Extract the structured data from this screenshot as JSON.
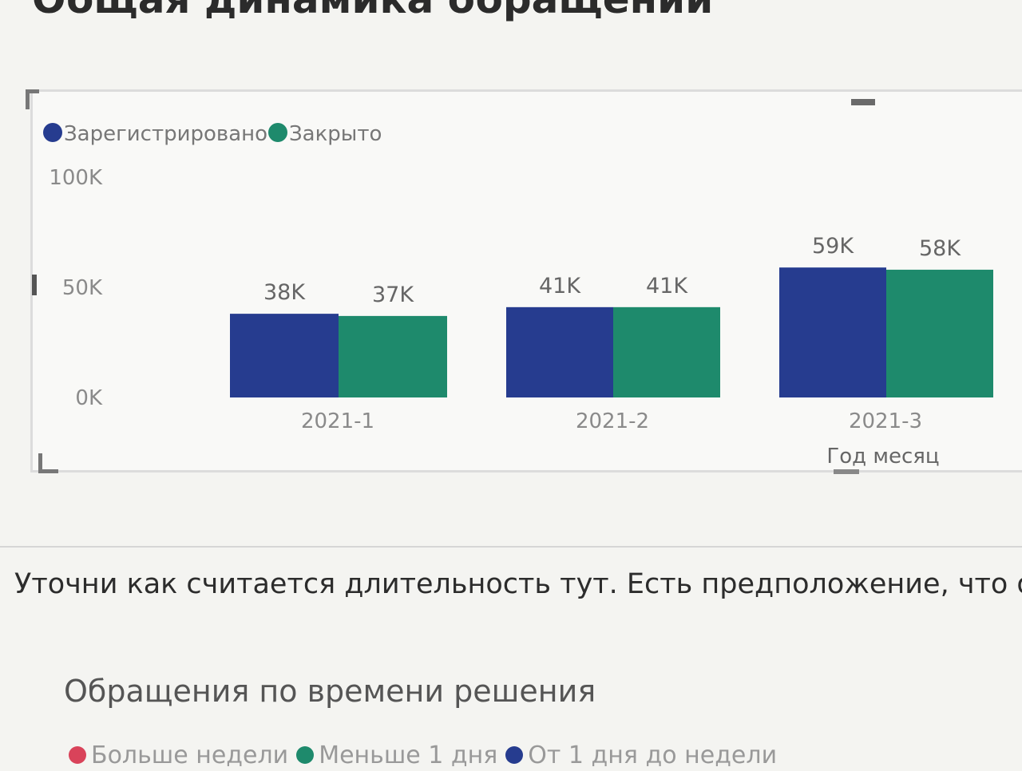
{
  "page": {
    "title": "Общая динамика обращений"
  },
  "chart_data": {
    "type": "bar",
    "categories": [
      "2021-1",
      "2021-2",
      "2021-3"
    ],
    "series": [
      {
        "name": "Зарегистрировано",
        "values": [
          38,
          41,
          59
        ],
        "labels": [
          "38K",
          "41K",
          "59K"
        ],
        "color": "#263c8f"
      },
      {
        "name": "Закрыто",
        "values": [
          37,
          41,
          58
        ],
        "labels": [
          "37K",
          "41K",
          "58K"
        ],
        "color": "#1e8a6c"
      }
    ],
    "y_ticks": [
      {
        "value": 0,
        "label": "0K"
      },
      {
        "value": 50,
        "label": "50K"
      },
      {
        "value": 100,
        "label": "100K"
      }
    ],
    "ylim": [
      0,
      100
    ],
    "xlabel": "Год месяц",
    "ylabel": "",
    "legend_position": "top-left",
    "grid": false
  },
  "comment": {
    "text": "Уточни как считается длительность тут. Есть предположение, что он сч"
  },
  "section2": {
    "title": "Обращения по времени решения",
    "legend": [
      {
        "label": "Больше недели",
        "color": "#d9435a"
      },
      {
        "label": "Меньше 1 дня",
        "color": "#1e8a6c"
      },
      {
        "label": "От 1 дня до недели",
        "color": "#263c8f"
      }
    ]
  }
}
